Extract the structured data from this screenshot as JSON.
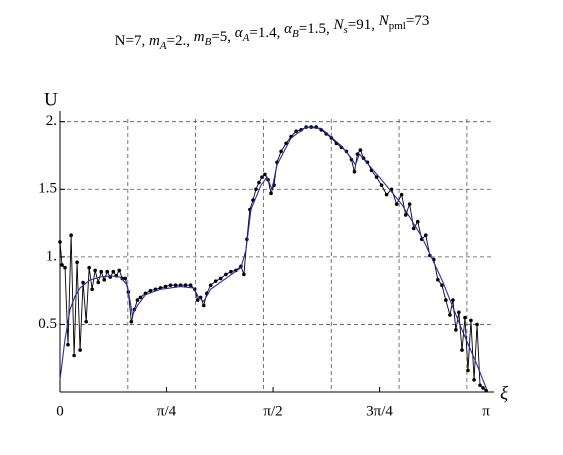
{
  "chart_data": {
    "type": "line",
    "title_parts": [
      "N=7, ",
      "m",
      "A",
      "=2., ",
      "m",
      "B",
      "=5, ",
      "α",
      "A",
      "=1.4, ",
      "α",
      "B",
      "=1.5, ",
      "N",
      "s",
      "=91, ",
      "N",
      "pml",
      "=73"
    ],
    "y_label": "U",
    "x_label": "ξ",
    "xlim": [
      0,
      3.2
    ],
    "ylim": [
      0,
      2.02
    ],
    "xticks": [
      0,
      {
        "value": 0.7854,
        "label": "π/4"
      },
      {
        "value": 1.5708,
        "label": "π/2"
      },
      {
        "value": 2.3562,
        "label": "3π/4"
      },
      {
        "value": 3.1416,
        "label": "π"
      }
    ],
    "yticks": [
      0.5,
      {
        "value": 1,
        "label": "1."
      },
      1.5,
      {
        "value": 2,
        "label": "2."
      }
    ],
    "xgrid": [
      0.5,
      1,
      1.5,
      2,
      2.5,
      3
    ],
    "grid": true,
    "series": [
      {
        "color": "#000000",
        "markers": true,
        "x": [
          0,
          0.015,
          0.037,
          0.059,
          0.082,
          0.104,
          0.126,
          0.148,
          0.17,
          0.193,
          0.215,
          0.237,
          0.259,
          0.282,
          0.304,
          0.326,
          0.348,
          0.37,
          0.393,
          0.415,
          0.437,
          0.459,
          0.482,
          0.504,
          0.526,
          0.548,
          0.571,
          0.593,
          0.63,
          0.667,
          0.704,
          0.741,
          0.778,
          0.815,
          0.852,
          0.889,
          0.926,
          0.963,
          0.993,
          1.015,
          1.037,
          1.06,
          1.082,
          1.111,
          1.148,
          1.185,
          1.223,
          1.26,
          1.297,
          1.334,
          1.356,
          1.378,
          1.4,
          1.423,
          1.445,
          1.467,
          1.489,
          1.511,
          1.534,
          1.556,
          1.578,
          1.6,
          1.63,
          1.667,
          1.704,
          1.741,
          1.778,
          1.815,
          1.852,
          1.889,
          1.926,
          1.963,
          2.001,
          2.038,
          2.075,
          2.112,
          2.149,
          2.171,
          2.193,
          2.215,
          2.238,
          2.267,
          2.297,
          2.334,
          2.371,
          2.408,
          2.445,
          2.482,
          2.519,
          2.549,
          2.578,
          2.608,
          2.638,
          2.667,
          2.697,
          2.727,
          2.756,
          2.786,
          2.816,
          2.845,
          2.875,
          2.897,
          2.919,
          2.941,
          2.964,
          2.986,
          3.008,
          3.03,
          3.053,
          3.075,
          3.097,
          3.119,
          3.142
        ],
        "values": [
          1.11,
          0.94,
          0.92,
          0.35,
          1.16,
          0.27,
          0.96,
          0.31,
          0.81,
          0.52,
          0.92,
          0.76,
          0.9,
          0.81,
          0.89,
          0.83,
          0.89,
          0.85,
          0.89,
          0.86,
          0.9,
          0.84,
          0.84,
          0.74,
          0.52,
          0.61,
          0.68,
          0.7,
          0.73,
          0.75,
          0.76,
          0.77,
          0.78,
          0.79,
          0.79,
          0.79,
          0.79,
          0.79,
          0.76,
          0.68,
          0.7,
          0.64,
          0.73,
          0.79,
          0.82,
          0.84,
          0.87,
          0.89,
          0.9,
          0.93,
          0.87,
          1.13,
          1.35,
          1.42,
          1.5,
          1.55,
          1.59,
          1.61,
          1.57,
          1.47,
          1.53,
          1.7,
          1.78,
          1.84,
          1.89,
          1.93,
          1.94,
          1.96,
          1.96,
          1.96,
          1.94,
          1.91,
          1.88,
          1.84,
          1.81,
          1.78,
          1.72,
          1.63,
          1.76,
          1.79,
          1.73,
          1.7,
          1.64,
          1.59,
          1.53,
          1.46,
          1.5,
          1.39,
          1.46,
          1.31,
          1.39,
          1.21,
          1.26,
          1.13,
          1.16,
          1.01,
          0.98,
          0.83,
          0.79,
          0.68,
          0.57,
          0.68,
          0.46,
          0.59,
          0.31,
          0.55,
          0.16,
          0.53,
          0.09,
          0.5,
          0.05,
          0.03,
          0.01
        ]
      },
      {
        "color": "#2a2aa8",
        "markers": false,
        "x": [
          0,
          0.037,
          0.074,
          0.111,
          0.148,
          0.222,
          0.296,
          0.37,
          0.445,
          0.496,
          0.534,
          0.571,
          0.63,
          0.741,
          0.889,
          0.985,
          1.022,
          1.06,
          1.111,
          1.223,
          1.334,
          1.371,
          1.408,
          1.482,
          1.526,
          1.563,
          1.6,
          1.704,
          1.815,
          1.926,
          2.075,
          2.149,
          2.178,
          2.208,
          2.371,
          2.519,
          2.667,
          2.816,
          2.964,
          3.075,
          3.142
        ],
        "values": [
          0.09,
          0.39,
          0.61,
          0.71,
          0.77,
          0.83,
          0.85,
          0.86,
          0.85,
          0.79,
          0.57,
          0.64,
          0.72,
          0.76,
          0.78,
          0.77,
          0.7,
          0.67,
          0.76,
          0.84,
          0.92,
          1.05,
          1.35,
          1.53,
          1.59,
          1.5,
          1.68,
          1.88,
          1.96,
          1.95,
          1.82,
          1.73,
          1.68,
          1.76,
          1.57,
          1.39,
          1.15,
          0.83,
          0.46,
          0.2,
          0.03
        ]
      }
    ]
  }
}
